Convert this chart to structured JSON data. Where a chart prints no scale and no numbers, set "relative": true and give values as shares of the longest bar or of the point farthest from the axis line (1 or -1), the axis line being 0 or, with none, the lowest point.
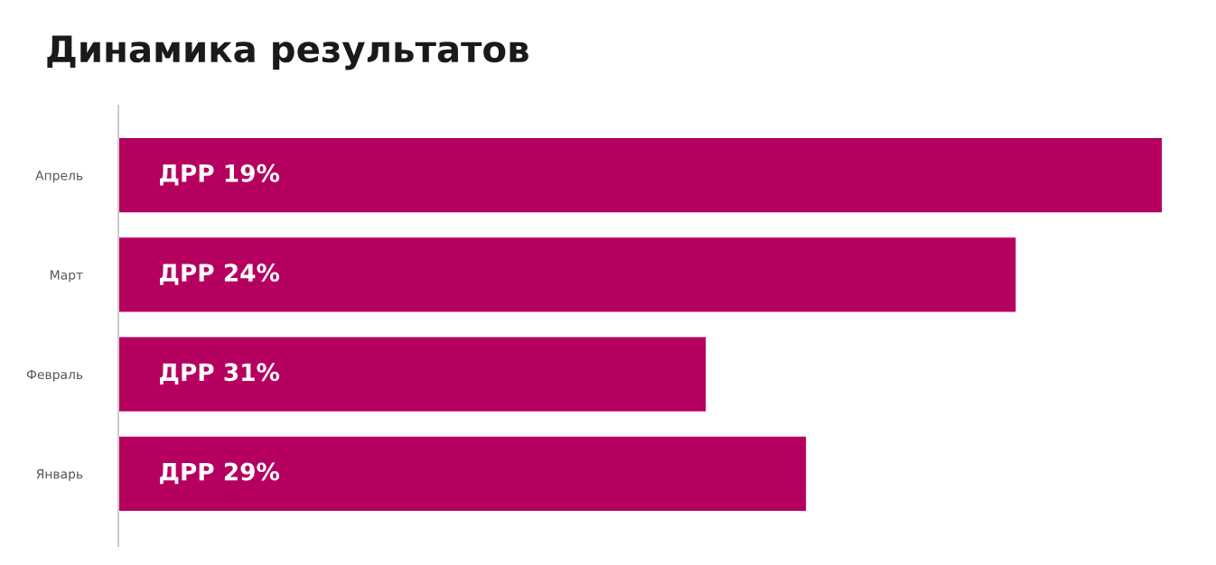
{
  "chart_data": {
    "type": "bar",
    "orientation": "horizontal",
    "relative": true,
    "title": "Динамика результатов",
    "categories": [
      "Апрель",
      "Март",
      "Февраль",
      "Январь"
    ],
    "values": [
      1,
      0.86,
      0.563,
      0.659
    ],
    "annotations": [
      "ДРР 19%",
      "ДРР 24%",
      "ДРР 31%",
      "ДРР 29%"
    ],
    "color": "#b5005f",
    "grid": false,
    "legend": false
  }
}
